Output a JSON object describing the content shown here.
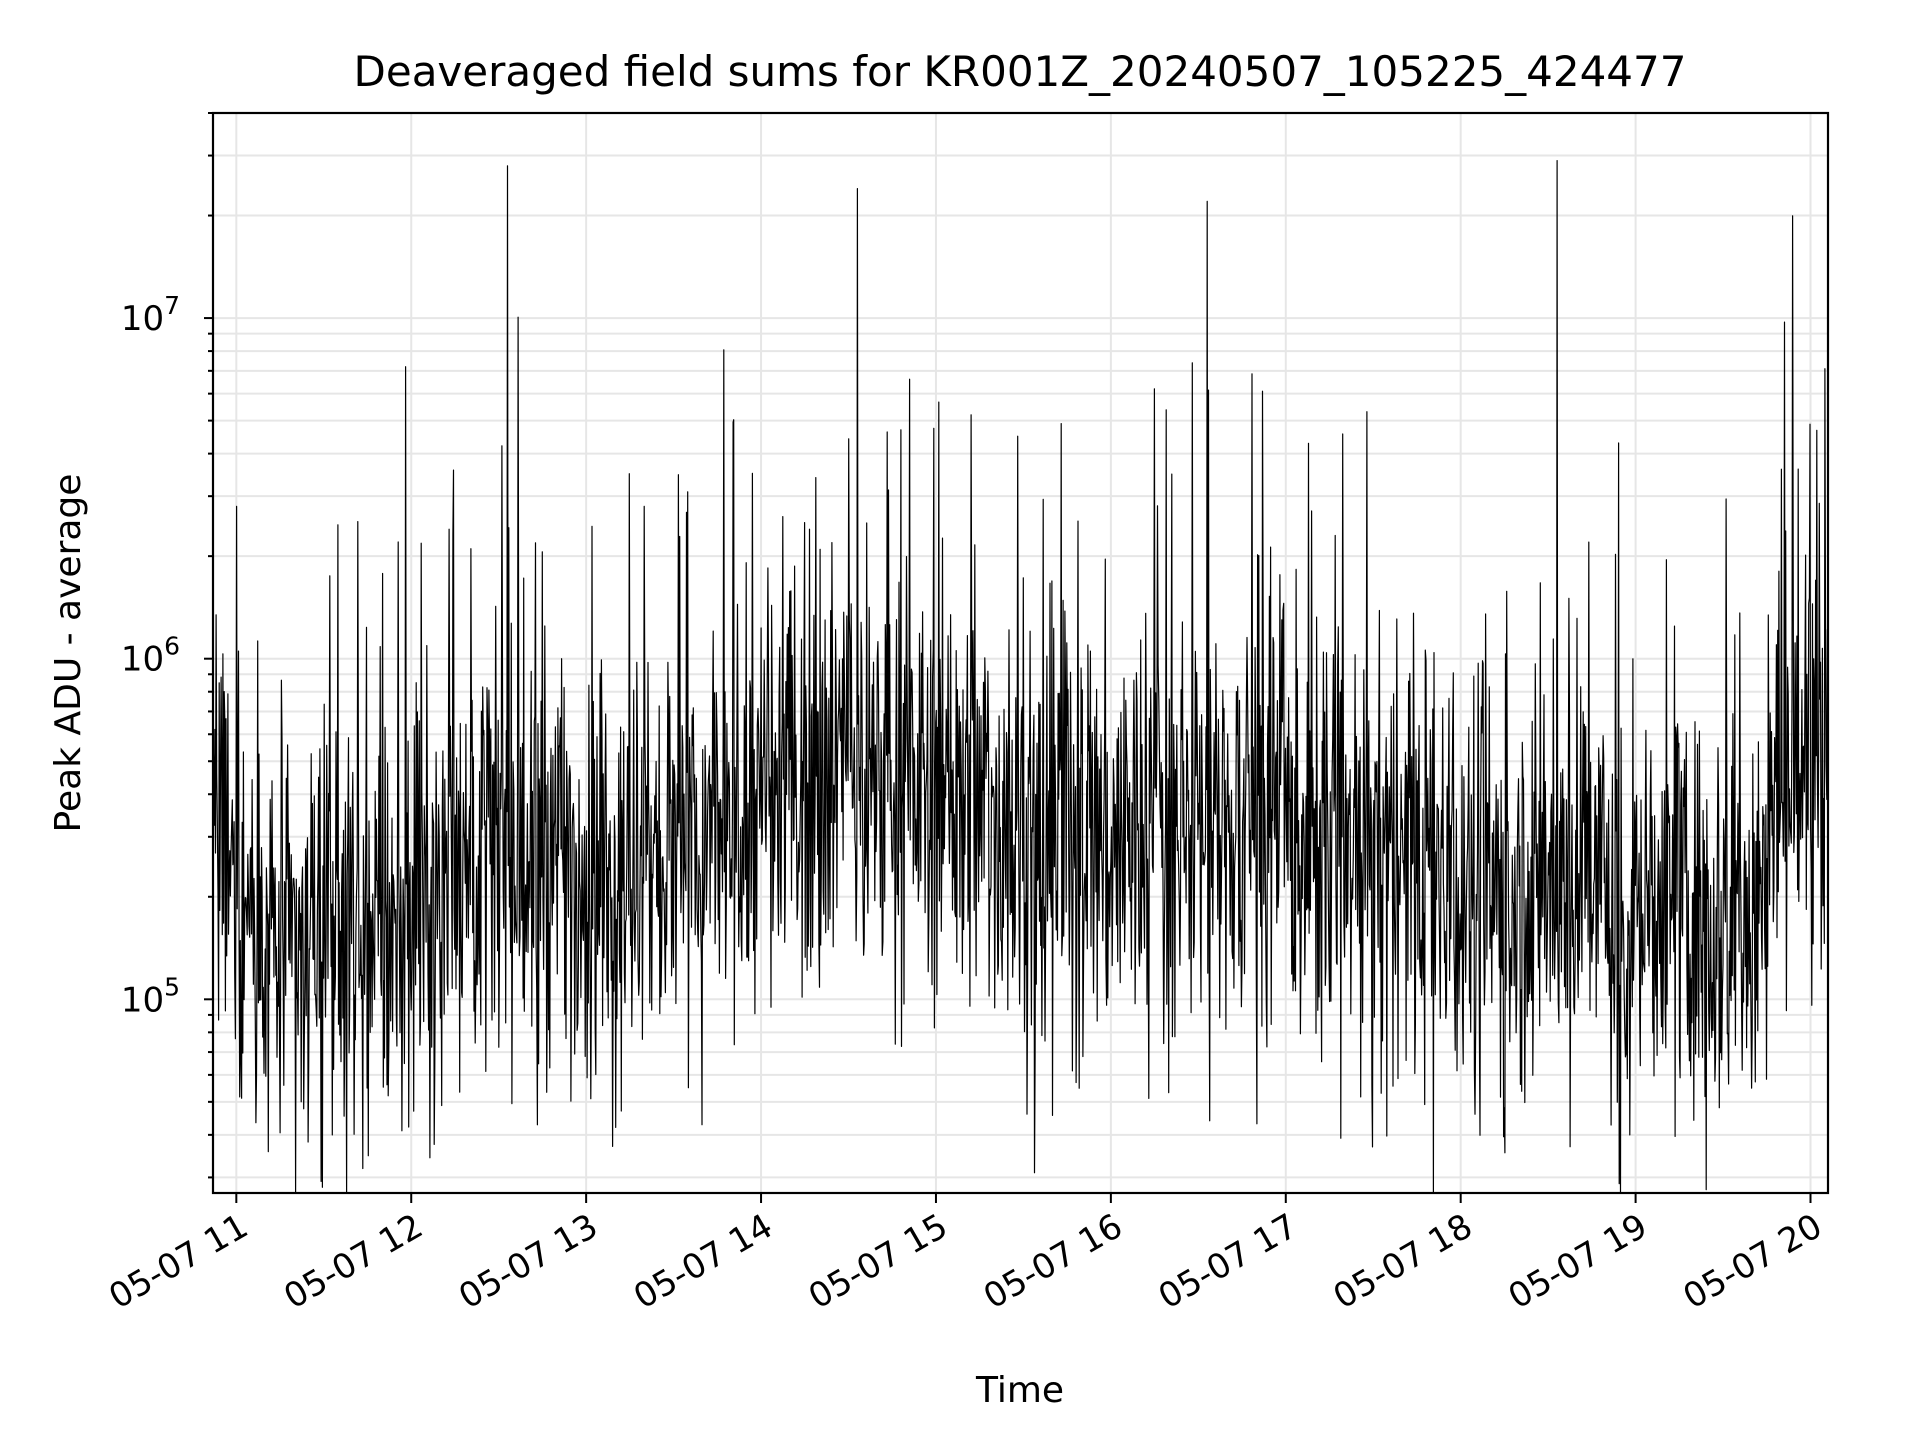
{
  "chart_data": {
    "type": "line",
    "title": "Deaveraged field sums for KR001Z_20240507_105225_424477",
    "xlabel": "Time",
    "ylabel": "Peak ADU - average",
    "yscale": "log",
    "xlim": [
      "2024-05-07T10:52:00",
      "2024-05-07T20:06:00"
    ],
    "ylim": [
      27000,
      40000000
    ],
    "x_ticks": [
      "05-07 11",
      "05-07 12",
      "05-07 13",
      "05-07 14",
      "05-07 15",
      "05-07 16",
      "05-07 17",
      "05-07 18",
      "05-07 19",
      "05-07 20"
    ],
    "y_ticks": [
      {
        "value": 100000,
        "label": "10",
        "exp": "5"
      },
      {
        "value": 1000000,
        "label": "10",
        "exp": "6"
      },
      {
        "value": 10000000,
        "label": "10",
        "exp": "7"
      }
    ],
    "grid": true,
    "line_color": "#000000",
    "grid_color": "#e6e6e6",
    "series": [
      {
        "x": [
          "2024-05-07T10:52:00",
          "2024-05-07T11:00:00",
          "2024-05-07T11:10:00",
          "2024-05-07T11:20:00",
          "2024-05-07T11:30:00",
          "2024-05-07T11:40:00",
          "2024-05-07T11:50:00",
          "2024-05-07T12:00:00",
          "2024-05-07T12:10:00",
          "2024-05-07T12:20:00",
          "2024-05-07T12:30:00",
          "2024-05-07T12:40:00",
          "2024-05-07T12:50:00",
          "2024-05-07T13:00:00",
          "2024-05-07T13:10:00",
          "2024-05-07T13:20:00",
          "2024-05-07T13:30:00",
          "2024-05-07T13:40:00",
          "2024-05-07T13:50:00",
          "2024-05-07T14:00:00",
          "2024-05-07T14:10:00",
          "2024-05-07T14:20:00",
          "2024-05-07T14:30:00",
          "2024-05-07T14:40:00",
          "2024-05-07T14:50:00",
          "2024-05-07T15:00:00",
          "2024-05-07T15:10:00",
          "2024-05-07T15:20:00",
          "2024-05-07T15:30:00",
          "2024-05-07T15:40:00",
          "2024-05-07T15:50:00",
          "2024-05-07T16:00:00",
          "2024-05-07T16:10:00",
          "2024-05-07T16:20:00",
          "2024-05-07T16:30:00",
          "2024-05-07T16:40:00",
          "2024-05-07T16:50:00",
          "2024-05-07T17:00:00",
          "2024-05-07T17:10:00",
          "2024-05-07T17:20:00",
          "2024-05-07T17:30:00",
          "2024-05-07T17:40:00",
          "2024-05-07T17:50:00",
          "2024-05-07T18:00:00",
          "2024-05-07T18:10:00",
          "2024-05-07T18:20:00",
          "2024-05-07T18:30:00",
          "2024-05-07T18:40:00",
          "2024-05-07T18:50:00",
          "2024-05-07T19:00:00",
          "2024-05-07T19:10:00",
          "2024-05-07T19:20:00",
          "2024-05-07T19:30:00",
          "2024-05-07T19:40:00",
          "2024-05-07T19:50:00",
          "2024-05-07T20:00:00",
          "2024-05-07T20:06:00"
        ],
        "baseline": [
          300000,
          250000,
          150000,
          130000,
          140000,
          150000,
          160000,
          180000,
          240000,
          300000,
          260000,
          230000,
          240000,
          230000,
          220000,
          230000,
          260000,
          290000,
          330000,
          360000,
          420000,
          500000,
          520000,
          450000,
          430000,
          420000,
          380000,
          340000,
          320000,
          300000,
          300000,
          290000,
          300000,
          320000,
          330000,
          310000,
          340000,
          300000,
          280000,
          260000,
          250000,
          250000,
          250000,
          240000,
          210000,
          200000,
          230000,
          210000,
          200000,
          170000,
          180000,
          170000,
          180000,
          170000,
          450000,
          520000,
          560000
        ]
      }
    ],
    "peaks": [
      {
        "x": "2024-05-07T11:00:00",
        "y": 2800000
      },
      {
        "x": "2024-05-07T11:58:00",
        "y": 7200000
      },
      {
        "x": "2024-05-07T12:13:00",
        "y": 2400000
      },
      {
        "x": "2024-05-07T12:33:00",
        "y": 28000000
      },
      {
        "x": "2024-05-07T13:20:00",
        "y": 2800000
      },
      {
        "x": "2024-05-07T13:57:00",
        "y": 3500000
      },
      {
        "x": "2024-05-07T14:33:00",
        "y": 24000000
      },
      {
        "x": "2024-05-07T14:48:00",
        "y": 4700000
      },
      {
        "x": "2024-05-07T15:12:00",
        "y": 5200000
      },
      {
        "x": "2024-05-07T15:28:00",
        "y": 4500000
      },
      {
        "x": "2024-05-07T15:43:00",
        "y": 4900000
      },
      {
        "x": "2024-05-07T16:15:00",
        "y": 6200000
      },
      {
        "x": "2024-05-07T16:33:00",
        "y": 22000000
      },
      {
        "x": "2024-05-07T16:52:00",
        "y": 6100000
      },
      {
        "x": "2024-05-07T17:17:00",
        "y": 2300000
      },
      {
        "x": "2024-05-07T18:33:00",
        "y": 29000000
      },
      {
        "x": "2024-05-07T18:44:00",
        "y": 2200000
      },
      {
        "x": "2024-05-07T19:50:00",
        "y": 3600000
      },
      {
        "x": "2024-05-07T20:05:00",
        "y": 7100000
      }
    ],
    "dips": [
      {
        "x": "2024-05-07T11:33:00",
        "y": 40000
      },
      {
        "x": "2024-05-07T13:09:00",
        "y": 37000
      },
      {
        "x": "2024-05-07T13:12:00",
        "y": 47000
      },
      {
        "x": "2024-05-07T13:35:00",
        "y": 55000
      },
      {
        "x": "2024-05-07T15:34:00",
        "y": 68000
      },
      {
        "x": "2024-05-07T15:48:00",
        "y": 57000
      },
      {
        "x": "2024-05-07T16:34:00",
        "y": 44000
      },
      {
        "x": "2024-05-07T18:05:00",
        "y": 46000
      },
      {
        "x": "2024-05-07T18:15:00",
        "y": 48000
      },
      {
        "x": "2024-05-07T18:58:00",
        "y": 40000
      }
    ]
  }
}
